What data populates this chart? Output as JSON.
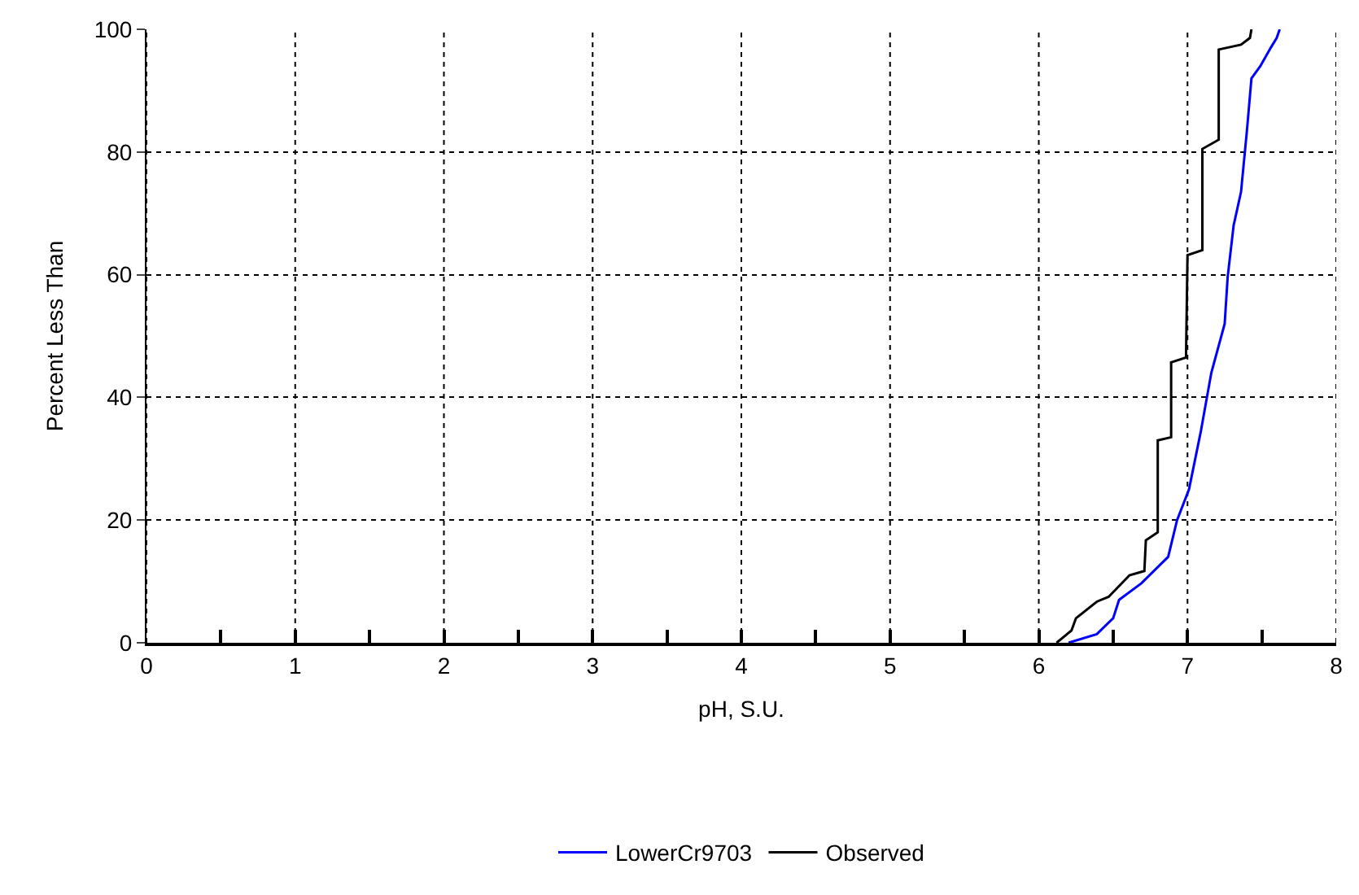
{
  "chart_data": {
    "type": "line",
    "xlabel": "pH, S.U.",
    "ylabel": "Percent Less Than",
    "xlim": [
      0,
      8
    ],
    "ylim": [
      0,
      100
    ],
    "xticks": [
      0,
      {
        "value": 0.5,
        "label": null
      },
      1,
      {
        "value": 1.5,
        "label": null
      },
      2,
      {
        "value": 2.5,
        "label": null
      },
      3,
      {
        "value": 3.5,
        "label": null
      },
      4,
      {
        "value": 4.5,
        "label": null
      },
      5,
      {
        "value": 5.5,
        "label": null
      },
      6,
      {
        "value": 6.5,
        "label": null
      },
      7,
      {
        "value": 7.5,
        "label": null
      },
      8
    ],
    "yticks": [
      0,
      20,
      40,
      60,
      80,
      100
    ],
    "grid": true,
    "legend": "bottom",
    "line_style": "solid",
    "marker": "none",
    "series": [
      {
        "name": "LowerCr9703",
        "color": "#0000ff",
        "x": [
          6.2,
          6.39,
          6.5,
          6.54,
          6.69,
          6.87,
          6.93,
          7.01,
          7.09,
          7.16,
          7.25,
          7.27,
          7.31,
          7.36,
          7.4,
          7.43,
          7.49,
          7.56,
          7.6,
          7.62
        ],
        "values": [
          0,
          1.4,
          4,
          7,
          9.7,
          14,
          20,
          25,
          34.5,
          44,
          52,
          59.6,
          68,
          73.5,
          83.6,
          92,
          94,
          97,
          98.6,
          100
        ]
      },
      {
        "name": "Observed",
        "color": "#000000",
        "x": [
          6.12,
          6.22,
          6.25,
          6.39,
          6.47,
          6.61,
          6.71,
          6.72,
          6.8,
          6.8,
          6.89,
          6.89,
          6.99,
          7.0,
          7.1,
          7.1,
          7.21,
          7.21,
          7.36,
          7.42,
          7.43
        ],
        "values": [
          0,
          2,
          4,
          6.7,
          7.5,
          11,
          11.7,
          16.7,
          18,
          33,
          33.5,
          45.7,
          46.5,
          63.2,
          64,
          80.5,
          82,
          96.7,
          97.5,
          98.6,
          100
        ]
      }
    ]
  }
}
